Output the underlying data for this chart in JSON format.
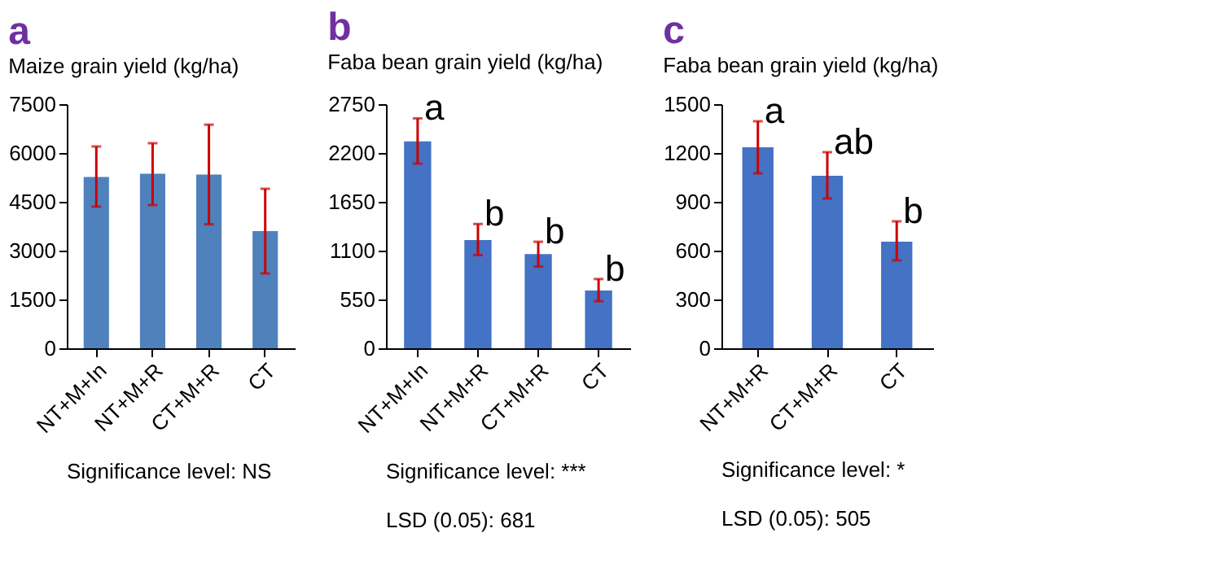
{
  "chart_data": [
    {
      "type": "bar",
      "title": "a",
      "subtitle": "Maize grain yield (kg/ha)",
      "categories": [
        "NT+M+In",
        "NT+M+R",
        "CT+M+R",
        "CT"
      ],
      "values": [
        5260,
        5360,
        5340,
        3600
      ],
      "color": "#4f81bd",
      "errors": [
        [
          4350,
          6200
        ],
        [
          4400,
          6300
        ],
        [
          3810,
          6870
        ],
        [
          2300,
          4900
        ]
      ],
      "ylim": [
        0,
        7500
      ],
      "yticks": [
        0,
        1500,
        3000,
        4500,
        6000,
        7500
      ],
      "grid": false,
      "annotations": [
        "Significance level: NS"
      ]
    },
    {
      "type": "bar",
      "title": "b",
      "subtitle": "Faba bean grain yield (kg/ha)",
      "categories": [
        "NT+M+In",
        "NT+M+R",
        "CT+M+R",
        "CT"
      ],
      "values": [
        2330,
        1220,
        1060,
        650
      ],
      "color": "#4472c4",
      "errors": [
        [
          2080,
          2590
        ],
        [
          1050,
          1400
        ],
        [
          920,
          1200
        ],
        [
          530,
          780
        ]
      ],
      "ylim": [
        0,
        2750
      ],
      "yticks": [
        0,
        550,
        1100,
        1650,
        2200,
        2750
      ],
      "grid": false,
      "annotations": [
        {
          "text": "a",
          "x": "NT+M+In",
          "y": 2590
        },
        {
          "text": "b",
          "x": "NT+M+R",
          "y": 1400
        },
        {
          "text": "b",
          "x": "CT+M+R",
          "y": 1200
        },
        {
          "text": "b",
          "x": "CT",
          "y": 780
        },
        "Significance level: ***",
        "LSD (0.05): 681"
      ]
    },
    {
      "type": "bar",
      "title": "c",
      "subtitle": "Faba bean grain yield (kg/ha)",
      "categories": [
        "NT+M+R",
        "CT+M+R",
        "CT"
      ],
      "values": [
        1235,
        1060,
        655
      ],
      "color": "#4472c4",
      "errors": [
        [
          1075,
          1395
        ],
        [
          920,
          1205
        ],
        [
          540,
          780
        ]
      ],
      "ylim": [
        0,
        1500
      ],
      "yticks": [
        0,
        300,
        600,
        900,
        1200,
        1500
      ],
      "grid": false,
      "annotations": [
        {
          "text": "a",
          "x": "NT+M+R",
          "y": 1395
        },
        {
          "text": "ab",
          "x": "CT+M+R",
          "y": 1205
        },
        {
          "text": "b",
          "x": "CT",
          "y": 780
        },
        "Significance level: *",
        "LSD (0.05): 505"
      ]
    }
  ]
}
